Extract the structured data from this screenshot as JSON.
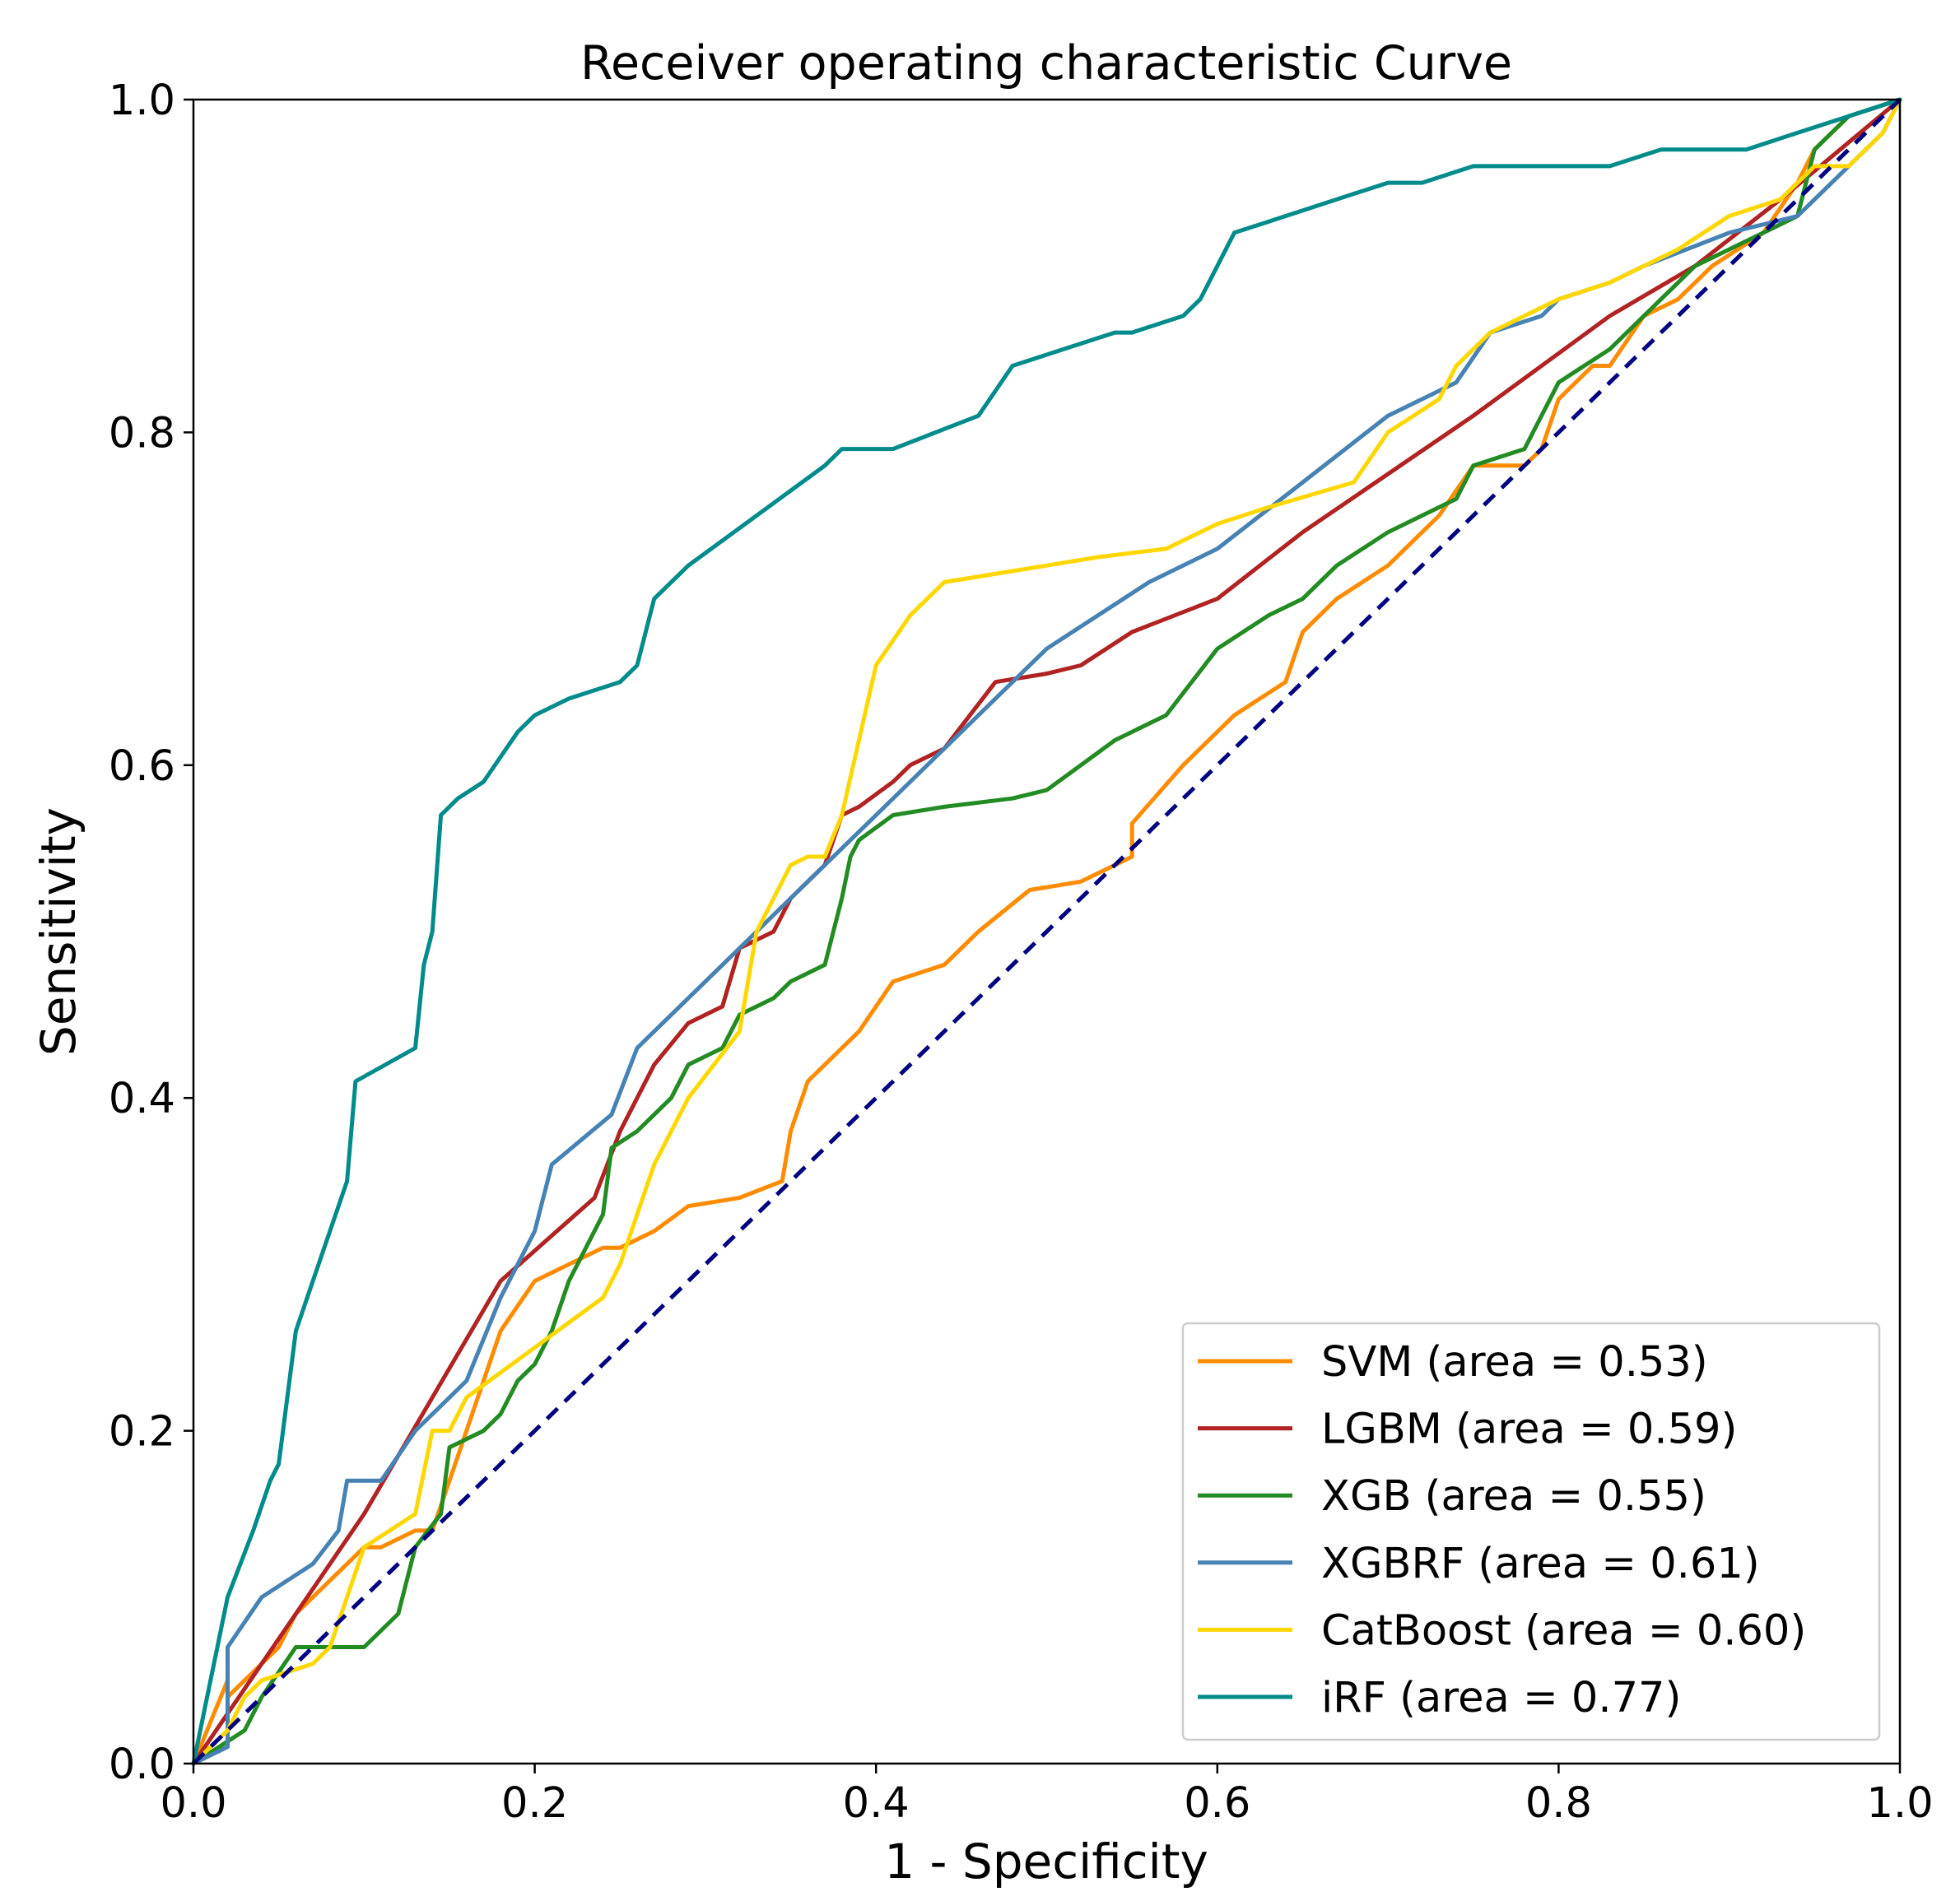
{
  "chart_data": {
    "type": "line",
    "title": "Receiver operating characteristic Curve",
    "xlabel": "1 - Specificity",
    "ylabel": "Sensitivity",
    "xlim": [
      0.0,
      1.0
    ],
    "ylim": [
      0.0,
      1.0
    ],
    "xticks": [
      "0.0",
      "0.2",
      "0.4",
      "0.6",
      "0.8",
      "1.0"
    ],
    "yticks": [
      "0.0",
      "0.2",
      "0.4",
      "0.6",
      "0.8",
      "1.0"
    ],
    "grid": false,
    "legend_position": "lower-right",
    "reference_line": {
      "name": "chance",
      "color": "#000080",
      "style": "dashed",
      "x": [
        0,
        1
      ],
      "y": [
        0,
        1
      ]
    },
    "series": [
      {
        "name": "SVM",
        "legend": "SVM (area = 0.53)",
        "area": 0.53,
        "color": "#ff8c00",
        "x": [
          0,
          0.02,
          0.02,
          0.03,
          0.05,
          0.06,
          0.07,
          0.08,
          0.09,
          0.1,
          0.11,
          0.13,
          0.14,
          0.15,
          0.16,
          0.17,
          0.18,
          0.2,
          0.22,
          0.24,
          0.25,
          0.27,
          0.29,
          0.32,
          0.345,
          0.35,
          0.36,
          0.37,
          0.39,
          0.41,
          0.44,
          0.46,
          0.49,
          0.52,
          0.55,
          0.55,
          0.58,
          0.61,
          0.64,
          0.65,
          0.67,
          0.7,
          0.73,
          0.75,
          0.78,
          0.79,
          0.8,
          0.82,
          0.83,
          0.85,
          0.87,
          0.89,
          0.92,
          0.94,
          0.95,
          0.96,
          0.97,
          1.0
        ],
        "y": [
          0,
          0.05,
          0.04,
          0.05,
          0.07,
          0.09,
          0.1,
          0.11,
          0.12,
          0.13,
          0.13,
          0.14,
          0.14,
          0.17,
          0.2,
          0.23,
          0.26,
          0.29,
          0.3,
          0.31,
          0.31,
          0.32,
          0.335,
          0.34,
          0.35,
          0.38,
          0.41,
          0.42,
          0.44,
          0.47,
          0.48,
          0.5,
          0.525,
          0.53,
          0.545,
          0.565,
          0.6,
          0.63,
          0.65,
          0.68,
          0.7,
          0.72,
          0.75,
          0.78,
          0.78,
          0.79,
          0.82,
          0.84,
          0.84,
          0.87,
          0.88,
          0.9,
          0.92,
          0.95,
          0.97,
          0.98,
          0.99,
          1.0
        ]
      },
      {
        "name": "LGBM",
        "legend": "LGBM (area = 0.59)",
        "area": 0.59,
        "color": "#b22222",
        "x": [
          0,
          0.1,
          0.18,
          0.235,
          0.25,
          0.27,
          0.29,
          0.31,
          0.32,
          0.34,
          0.35,
          0.37,
          0.38,
          0.39,
          0.41,
          0.42,
          0.44,
          0.47,
          0.5,
          0.52,
          0.55,
          0.6,
          0.65,
          0.75,
          0.83,
          0.88,
          0.93,
          1.0
        ],
        "y": [
          0,
          0.15,
          0.29,
          0.34,
          0.38,
          0.42,
          0.445,
          0.455,
          0.49,
          0.5,
          0.52,
          0.54,
          0.57,
          0.575,
          0.59,
          0.6,
          0.61,
          0.65,
          0.655,
          0.66,
          0.68,
          0.7,
          0.74,
          0.81,
          0.87,
          0.9,
          0.94,
          1.0
        ]
      },
      {
        "name": "XGB",
        "legend": "XGB (area = 0.55)",
        "area": 0.55,
        "color": "#228b22",
        "x": [
          0,
          0.03,
          0.04,
          0.06,
          0.1,
          0.12,
          0.13,
          0.145,
          0.15,
          0.17,
          0.18,
          0.19,
          0.2,
          0.21,
          0.22,
          0.24,
          0.245,
          0.26,
          0.28,
          0.29,
          0.31,
          0.32,
          0.34,
          0.35,
          0.37,
          0.38,
          0.385,
          0.39,
          0.41,
          0.44,
          0.48,
          0.5,
          0.52,
          0.54,
          0.57,
          0.6,
          0.63,
          0.65,
          0.67,
          0.7,
          0.74,
          0.75,
          0.78,
          0.8,
          0.83,
          0.86,
          0.88,
          0.92,
          0.94,
          0.95,
          0.97,
          1.0
        ],
        "y": [
          0,
          0.02,
          0.04,
          0.07,
          0.07,
          0.09,
          0.13,
          0.15,
          0.19,
          0.2,
          0.21,
          0.23,
          0.24,
          0.26,
          0.29,
          0.33,
          0.37,
          0.38,
          0.4,
          0.42,
          0.43,
          0.45,
          0.46,
          0.47,
          0.48,
          0.52,
          0.545,
          0.555,
          0.57,
          0.575,
          0.58,
          0.585,
          0.6,
          0.615,
          0.63,
          0.67,
          0.69,
          0.7,
          0.72,
          0.74,
          0.76,
          0.78,
          0.79,
          0.83,
          0.85,
          0.88,
          0.9,
          0.92,
          0.93,
          0.97,
          0.99,
          1.0
        ]
      },
      {
        "name": "XGBRF",
        "legend": "XGBRF (area = 0.61)",
        "area": 0.61,
        "color": "#4682b4",
        "x": [
          0,
          0.02,
          0.02,
          0.04,
          0.07,
          0.085,
          0.09,
          0.11,
          0.13,
          0.15,
          0.16,
          0.18,
          0.2,
          0.21,
          0.245,
          0.26,
          0.3,
          0.35,
          0.4,
          0.45,
          0.5,
          0.56,
          0.6,
          0.65,
          0.7,
          0.74,
          0.76,
          0.79,
          0.8,
          0.83,
          0.85,
          0.9,
          0.94,
          0.96,
          0.98,
          0.99,
          1.0
        ],
        "y": [
          0,
          0.01,
          0.07,
          0.1,
          0.12,
          0.14,
          0.17,
          0.17,
          0.2,
          0.22,
          0.23,
          0.28,
          0.32,
          0.36,
          0.39,
          0.43,
          0.47,
          0.52,
          0.57,
          0.62,
          0.67,
          0.71,
          0.73,
          0.77,
          0.81,
          0.83,
          0.86,
          0.87,
          0.88,
          0.89,
          0.9,
          0.92,
          0.93,
          0.95,
          0.97,
          0.98,
          1.0
        ]
      },
      {
        "name": "CatBoost",
        "legend": "CatBoost (area = 0.60)",
        "area": 0.6,
        "color": "#ffd700",
        "x": [
          0,
          0.02,
          0.03,
          0.04,
          0.07,
          0.08,
          0.09,
          0.1,
          0.13,
          0.14,
          0.15,
          0.16,
          0.2,
          0.24,
          0.25,
          0.26,
          0.27,
          0.28,
          0.29,
          0.32,
          0.33,
          0.34,
          0.35,
          0.36,
          0.37,
          0.38,
          0.4,
          0.42,
          0.44,
          0.5,
          0.53,
          0.57,
          0.6,
          0.63,
          0.68,
          0.7,
          0.73,
          0.74,
          0.76,
          0.78,
          0.8,
          0.83,
          0.85,
          0.87,
          0.9,
          0.93,
          0.95,
          0.97,
          0.99,
          1.0
        ],
        "y": [
          0,
          0.02,
          0.04,
          0.05,
          0.06,
          0.07,
          0.1,
          0.13,
          0.15,
          0.2,
          0.2,
          0.22,
          0.25,
          0.28,
          0.3,
          0.33,
          0.36,
          0.38,
          0.4,
          0.44,
          0.5,
          0.52,
          0.54,
          0.545,
          0.545,
          0.57,
          0.66,
          0.69,
          0.71,
          0.72,
          0.725,
          0.73,
          0.745,
          0.755,
          0.77,
          0.8,
          0.82,
          0.84,
          0.86,
          0.87,
          0.88,
          0.89,
          0.9,
          0.91,
          0.93,
          0.94,
          0.96,
          0.96,
          0.98,
          1.0
        ]
      },
      {
        "name": "iRF",
        "legend": "iRF (area = 0.77)",
        "area": 0.77,
        "color": "#008b8b",
        "x": [
          0,
          0.02,
          0.035,
          0.045,
          0.05,
          0.06,
          0.07,
          0.08,
          0.09,
          0.095,
          0.13,
          0.135,
          0.14,
          0.145,
          0.155,
          0.17,
          0.19,
          0.2,
          0.22,
          0.25,
          0.26,
          0.27,
          0.29,
          0.33,
          0.37,
          0.38,
          0.41,
          0.46,
          0.48,
          0.51,
          0.54,
          0.55,
          0.58,
          0.59,
          0.61,
          0.67,
          0.7,
          0.72,
          0.75,
          0.8,
          0.83,
          0.86,
          0.88,
          0.91,
          0.94,
          0.97,
          1.0
        ],
        "y": [
          0,
          0.1,
          0.14,
          0.17,
          0.18,
          0.26,
          0.29,
          0.32,
          0.35,
          0.41,
          0.43,
          0.48,
          0.5,
          0.57,
          0.58,
          0.59,
          0.62,
          0.63,
          0.64,
          0.65,
          0.66,
          0.7,
          0.72,
          0.75,
          0.78,
          0.79,
          0.79,
          0.81,
          0.84,
          0.85,
          0.86,
          0.86,
          0.87,
          0.88,
          0.92,
          0.94,
          0.95,
          0.95,
          0.96,
          0.96,
          0.96,
          0.97,
          0.97,
          0.97,
          0.98,
          0.99,
          1.0
        ]
      }
    ]
  }
}
